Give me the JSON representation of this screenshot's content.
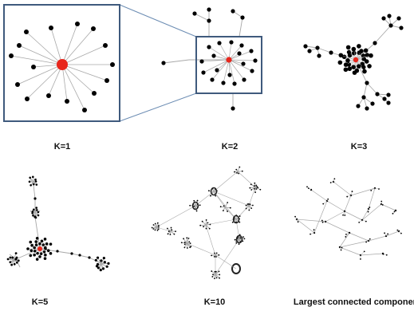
{
  "figure": {
    "center_color": "#e8261c",
    "node_color": "#000000",
    "edge_color": "#a8a8a8",
    "inset_border_color": "#3f5a7d",
    "zoom_line_color": "#6b8cb3",
    "panels": [
      {
        "id": "k1",
        "label": "K=1"
      },
      {
        "id": "k2",
        "label": "K=2"
      },
      {
        "id": "k3",
        "label": "K=3"
      },
      {
        "id": "k5",
        "label": "K=5"
      },
      {
        "id": "k10",
        "label": "K=10"
      },
      {
        "id": "lcc",
        "label": "Largest connected component"
      }
    ]
  }
}
